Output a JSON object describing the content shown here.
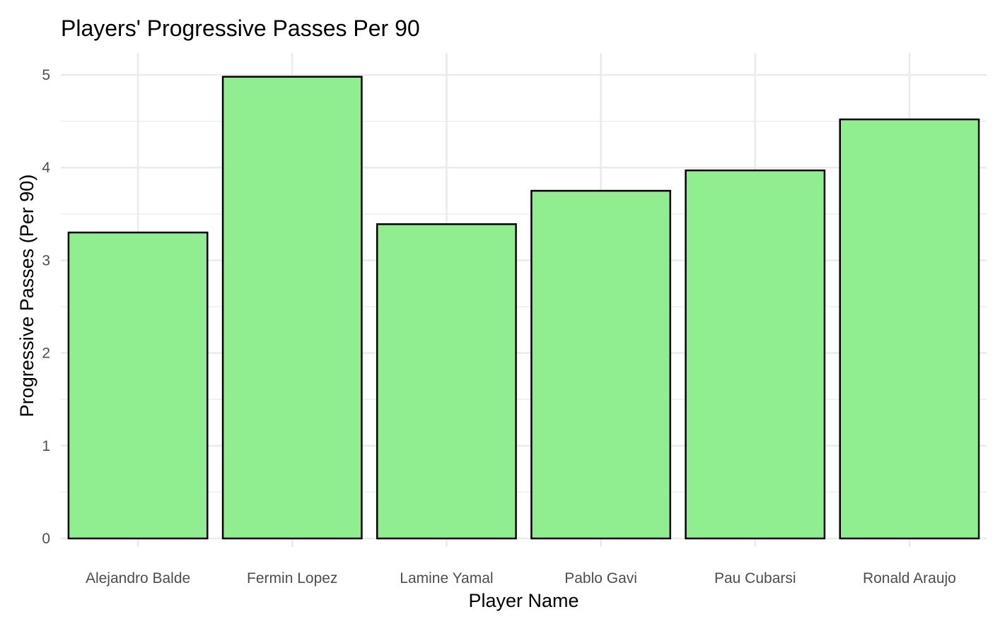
{
  "chart_data": {
    "type": "bar",
    "title": "Players' Progressive Passes Per 90",
    "xlabel": "Player Name",
    "ylabel": "Progressive Passes (Per 90)",
    "categories": [
      "Alejandro Balde",
      "Fermin Lopez",
      "Lamine Yamal",
      "Pablo Gavi",
      "Pau Cubarsi",
      "Ronald Araujo"
    ],
    "values": [
      3.3,
      4.98,
      3.39,
      3.75,
      3.97,
      4.52
    ],
    "ylim": [
      0,
      5.2
    ],
    "yticks": [
      0,
      1,
      2,
      3,
      4,
      5
    ],
    "grid": true,
    "legend": "none",
    "colors": {
      "bar_fill": "#90ee90",
      "bar_stroke": "#000000",
      "grid": "#ebebeb"
    }
  }
}
